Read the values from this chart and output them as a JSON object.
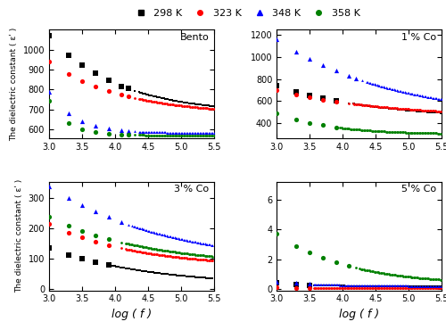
{
  "legend_labels": [
    "298 K",
    "323 K",
    "348 K",
    "358 K"
  ],
  "legend_colors": [
    "black",
    "red",
    "blue",
    "green"
  ],
  "legend_markers": [
    "s",
    "o",
    "^",
    "o"
  ],
  "subplot_labels": [
    "Bento",
    "1 % Co",
    "3 % Co",
    "5 % Co"
  ],
  "xlabel": "log ( f )",
  "xlim": [
    3.0,
    5.5
  ],
  "xticks": [
    3.0,
    3.5,
    4.0,
    4.5,
    5.0,
    5.5
  ],
  "bento": {
    "ylim": [
      555,
      1100
    ],
    "yticks": [
      600,
      700,
      800,
      900,
      1000
    ],
    "T298": {
      "a": 1070,
      "b": 680,
      "c": 0.95,
      "x_sparse_end": 4.2
    },
    "T323": {
      "a": 940,
      "b": 675,
      "c": 0.9,
      "x_sparse_end": 4.2
    },
    "T348": {
      "a": 790,
      "b": 582,
      "c": 2.5,
      "x_sparse_end": 4.2
    },
    "T358": {
      "a": 745,
      "b": 570,
      "c": 3.5,
      "x_sparse_end": 4.2
    }
  },
  "co1": {
    "ylim": [
      260,
      1250
    ],
    "yticks": [
      400,
      600,
      800,
      1000,
      1200
    ],
    "T298": {
      "a": 740,
      "b": 430,
      "c": 0.65,
      "x_sparse_end": 4.0
    },
    "T323": {
      "a": 700,
      "b": 450,
      "c": 0.6,
      "x_sparse_end": 4.0
    },
    "T348": {
      "a": 1160,
      "b": 430,
      "c": 0.55,
      "x_sparse_end": 4.2
    },
    "T358": {
      "a": 490,
      "b": 295,
      "c": 1.2,
      "x_sparse_end": 3.9
    }
  },
  "co3": {
    "ylim": [
      -5,
      355
    ],
    "yticks": [
      0,
      100,
      200,
      300
    ],
    "T298": {
      "a": 135,
      "b": 10,
      "c": 0.65,
      "x_sparse_end": 3.9
    },
    "T323": {
      "a": 215,
      "b": 72,
      "c": 0.75,
      "x_sparse_end": 4.0
    },
    "T348": {
      "a": 340,
      "b": 78,
      "c": 0.55,
      "x_sparse_end": 4.1
    },
    "T358": {
      "a": 238,
      "b": 75,
      "c": 0.65,
      "x_sparse_end": 4.0
    }
  },
  "co5": {
    "ylim": [
      -0.1,
      7.2
    ],
    "yticks": [
      0,
      2,
      4,
      6
    ],
    "T298": {
      "a": 0.4,
      "b": 0.17,
      "c": 1.8,
      "x_sparse_end": 3.5
    },
    "T323": {
      "a": 0.1,
      "b": 0.05,
      "c": 2.0,
      "x_sparse_end": 3.5
    },
    "T348": {
      "a": 0.5,
      "b": 0.19,
      "c": 1.5,
      "x_sparse_end": 3.5
    },
    "T358": {
      "a": 3.7,
      "b": 0.25,
      "c": 0.9,
      "x_sparse_end": 4.1
    }
  }
}
